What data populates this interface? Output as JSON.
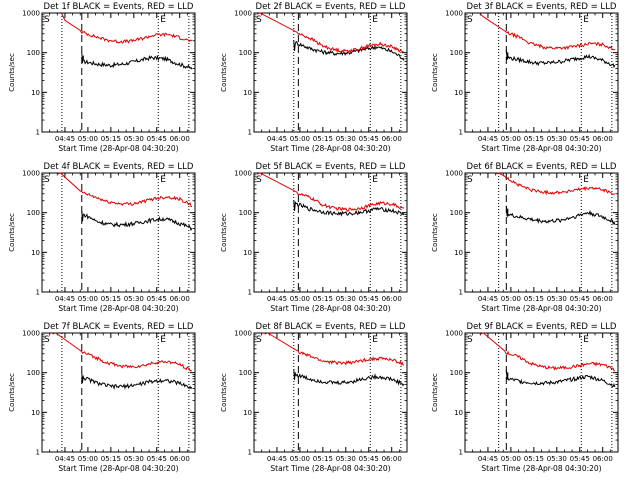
{
  "colors": {
    "events": "#000000",
    "lld": "#e00000",
    "background": "#ffffff"
  },
  "chart_data": [
    {
      "type": "line",
      "title": "Det 1f BLACK = Events, RED = LLD",
      "xlabel": "Start Time (28-Apr-08 04:30:20)",
      "ylabel": "Counts/sec",
      "yscale": "log",
      "ylim": [
        1,
        1000
      ],
      "y_ticks": [
        "1",
        "10",
        "100",
        "1000"
      ],
      "x_ticks": [
        "04:45",
        "05:00",
        "05:15",
        "05:30",
        "05:45",
        "06:00"
      ],
      "xlim": [
        "04:30",
        "06:10"
      ],
      "vlines_dotted": [
        "04:43",
        "05:46",
        "06:06"
      ],
      "vline_dashed": "04:56",
      "marker_s": "S",
      "marker_e": "E",
      "series": [
        {
          "name": "Events",
          "color": "#000000",
          "start_time": "04:56",
          "start_value": 100,
          "values_after_drop": [
            60,
            52,
            48,
            52,
            62,
            75,
            70,
            52,
            40
          ]
        },
        {
          "name": "LLD",
          "color": "#e00000",
          "initial_time": "04:43",
          "initial_value": 650,
          "start_value": 330,
          "values": [
            330,
            260,
            210,
            190,
            195,
            230,
            280,
            290,
            240,
            190
          ]
        }
      ]
    },
    {
      "type": "line",
      "title": "Det 2f BLACK = Events, RED = LLD",
      "xlabel": "Start Time (28-Apr-08 04:30:20)",
      "ylabel": "Counts/sec",
      "yscale": "log",
      "ylim": [
        1,
        1000
      ],
      "y_ticks": [
        "1",
        "10",
        "100",
        "1000"
      ],
      "x_ticks": [
        "04:45",
        "05:00",
        "05:15",
        "05:30",
        "05:45",
        "06:00"
      ],
      "xlim": [
        "04:30",
        "06:10"
      ],
      "vlines_dotted": [
        "04:56",
        "05:46",
        "06:06"
      ],
      "vline_dashed": "04:59",
      "marker_s": "S",
      "marker_e": "E",
      "series": [
        {
          "name": "Events",
          "color": "#000000",
          "start_time": "04:56",
          "start_value": 200,
          "values_after_drop": [
            180,
            130,
            105,
            95,
            100,
            120,
            140,
            110,
            70
          ]
        },
        {
          "name": "LLD",
          "color": "#e00000",
          "initial_time": "04:32",
          "initial_value": 1000,
          "start_value": 300,
          "values": [
            300,
            230,
            150,
            120,
            110,
            120,
            150,
            165,
            140,
            100
          ]
        }
      ]
    },
    {
      "type": "line",
      "title": "Det 3f BLACK = Events, RED = LLD",
      "xlabel": "Start Time (28-Apr-08 04:30:20)",
      "ylabel": "Counts/sec",
      "yscale": "log",
      "ylim": [
        1,
        1000
      ],
      "y_ticks": [
        "1",
        "10",
        "100",
        "1000"
      ],
      "x_ticks": [
        "04:45",
        "05:00",
        "05:15",
        "05:30",
        "05:45",
        "06:00"
      ],
      "xlim": [
        "04:30",
        "06:10"
      ],
      "vlines_dotted": [
        "04:52",
        "05:46",
        "06:06"
      ],
      "vline_dashed": "04:57",
      "marker_s": "S",
      "marker_e": "E",
      "series": [
        {
          "name": "Events",
          "color": "#000000",
          "start_time": "04:57",
          "start_value": 120,
          "values_after_drop": [
            75,
            65,
            55,
            55,
            60,
            70,
            80,
            65,
            45
          ]
        },
        {
          "name": "LLD",
          "color": "#e00000",
          "initial_time": "04:40",
          "initial_value": 800,
          "start_value": 320,
          "values": [
            320,
            250,
            170,
            140,
            130,
            135,
            150,
            170,
            160,
            120
          ]
        }
      ]
    },
    {
      "type": "line",
      "title": "Det 4f BLACK = Events, RED = LLD",
      "xlabel": "Start Time (28-Apr-08 04:30:20)",
      "ylabel": "Counts/sec",
      "yscale": "log",
      "ylim": [
        1,
        1000
      ],
      "y_ticks": [
        "1",
        "10",
        "100",
        "1000"
      ],
      "x_ticks": [
        "04:45",
        "05:00",
        "05:15",
        "05:30",
        "05:45",
        "06:00"
      ],
      "xlim": [
        "04:30",
        "06:10"
      ],
      "vlines_dotted": [
        "04:43",
        "05:46",
        "06:06"
      ],
      "vline_dashed": "04:56",
      "marker_s": "S",
      "marker_e": "E",
      "series": [
        {
          "name": "Events",
          "color": "#000000",
          "start_time": "04:56",
          "start_value": 110,
          "values_after_drop": [
            90,
            60,
            50,
            50,
            55,
            65,
            70,
            55,
            40
          ]
        },
        {
          "name": "LLD",
          "color": "#e00000",
          "initial_time": "04:40",
          "initial_value": 1000,
          "start_value": 320,
          "values": [
            320,
            250,
            190,
            170,
            165,
            190,
            230,
            250,
            220,
            150
          ]
        }
      ]
    },
    {
      "type": "line",
      "title": "Det 5f BLACK = Events, RED = LLD",
      "xlabel": "Start Time (28-Apr-08 04:30:20)",
      "ylabel": "Counts/sec",
      "yscale": "log",
      "ylim": [
        1,
        1000
      ],
      "y_ticks": [
        "1",
        "10",
        "100",
        "1000"
      ],
      "x_ticks": [
        "04:45",
        "05:00",
        "05:15",
        "05:30",
        "05:45",
        "06:00"
      ],
      "xlim": [
        "04:30",
        "06:10"
      ],
      "vlines_dotted": [
        "04:56",
        "05:46",
        "06:06"
      ],
      "vline_dashed": "04:59",
      "marker_s": "S",
      "marker_e": "E",
      "series": [
        {
          "name": "Events",
          "color": "#000000",
          "start_time": "04:56",
          "start_value": 200,
          "values_after_drop": [
            170,
            125,
            105,
            95,
            95,
            105,
            125,
            115,
            90
          ]
        },
        {
          "name": "LLD",
          "color": "#e00000",
          "initial_time": "04:32",
          "initial_value": 1000,
          "start_value": 300,
          "values": [
            300,
            240,
            160,
            130,
            120,
            125,
            150,
            175,
            165,
            120
          ]
        }
      ]
    },
    {
      "type": "line",
      "title": "Det 6f BLACK = Events, RED = LLD",
      "xlabel": "Start Time (28-Apr-08 04:30:20)",
      "ylabel": "Counts/sec",
      "yscale": "log",
      "ylim": [
        1,
        1000
      ],
      "y_ticks": [
        "1",
        "10",
        "100",
        "1000"
      ],
      "x_ticks": [
        "04:45",
        "05:00",
        "05:15",
        "05:30",
        "05:45",
        "06:00"
      ],
      "xlim": [
        "04:30",
        "06:10"
      ],
      "vlines_dotted": [
        "04:52",
        "05:46",
        "06:06"
      ],
      "vline_dashed": "04:57",
      "marker_s": "S",
      "marker_e": "E",
      "series": [
        {
          "name": "Events",
          "color": "#000000",
          "start_time": "04:57",
          "start_value": 150,
          "values_after_drop": [
            90,
            75,
            65,
            60,
            65,
            80,
            100,
            80,
            55
          ]
        },
        {
          "name": "LLD",
          "color": "#e00000",
          "initial_time": "04:50",
          "initial_value": 1000,
          "start_value": 750,
          "values": [
            750,
            500,
            380,
            330,
            320,
            340,
            380,
            420,
            380,
            280
          ]
        }
      ]
    },
    {
      "type": "line",
      "title": "Det 7f BLACK = Events, RED = LLD",
      "xlabel": "Start Time (28-Apr-08 04:30:20)",
      "ylabel": "Counts/sec",
      "yscale": "log",
      "ylim": [
        1,
        1000
      ],
      "y_ticks": [
        "1",
        "10",
        "100",
        "1000"
      ],
      "x_ticks": [
        "04:45",
        "05:00",
        "05:15",
        "05:30",
        "05:45",
        "06:00"
      ],
      "xlim": [
        "04:30",
        "06:10"
      ],
      "vlines_dotted": [
        "04:43",
        "05:46",
        "06:06"
      ],
      "vline_dashed": "04:56",
      "marker_s": "S",
      "marker_e": "E",
      "series": [
        {
          "name": "Events",
          "color": "#000000",
          "start_time": "04:56",
          "start_value": 100,
          "values_after_drop": [
            75,
            55,
            45,
            45,
            50,
            60,
            65,
            55,
            40
          ]
        },
        {
          "name": "LLD",
          "color": "#e00000",
          "initial_time": "04:37",
          "initial_value": 1000,
          "start_value": 330,
          "values": [
            330,
            250,
            180,
            150,
            140,
            150,
            180,
            190,
            160,
            110
          ]
        }
      ]
    },
    {
      "type": "line",
      "title": "Det 8f BLACK = Events, RED = LLD",
      "xlabel": "Start Time (28-Apr-08 04:30:20)",
      "ylabel": "Counts/sec",
      "yscale": "log",
      "ylim": [
        1,
        1000
      ],
      "y_ticks": [
        "1",
        "10",
        "100",
        "1000"
      ],
      "x_ticks": [
        "04:45",
        "05:00",
        "05:15",
        "05:30",
        "05:45",
        "06:00"
      ],
      "xlim": [
        "04:30",
        "06:10"
      ],
      "vlines_dotted": [
        "04:56",
        "05:46",
        "06:06"
      ],
      "vline_dashed": "04:59",
      "marker_s": "S",
      "marker_e": "E",
      "series": [
        {
          "name": "Events",
          "color": "#000000",
          "start_time": "04:56",
          "start_value": 120,
          "values_after_drop": [
            90,
            70,
            60,
            55,
            58,
            70,
            80,
            70,
            50
          ]
        },
        {
          "name": "LLD",
          "color": "#e00000",
          "initial_time": "04:37",
          "initial_value": 1000,
          "start_value": 330,
          "values": [
            330,
            260,
            200,
            180,
            175,
            190,
            220,
            230,
            210,
            160
          ]
        }
      ]
    },
    {
      "type": "line",
      "title": "Det 9f BLACK = Events, RED = LLD",
      "xlabel": "Start Time (28-Apr-08 04:30:20)",
      "ylabel": "Counts/sec",
      "yscale": "log",
      "ylim": [
        1,
        1000
      ],
      "y_ticks": [
        "1",
        "10",
        "100",
        "1000"
      ],
      "x_ticks": [
        "04:45",
        "05:00",
        "05:15",
        "05:30",
        "05:45",
        "06:00"
      ],
      "xlim": [
        "04:30",
        "06:10"
      ],
      "vlines_dotted": [
        "04:52",
        "05:46",
        "06:06"
      ],
      "vline_dashed": "04:57",
      "marker_s": "S",
      "marker_e": "E",
      "series": [
        {
          "name": "Events",
          "color": "#000000",
          "start_time": "04:57",
          "start_value": 120,
          "values_after_drop": [
            70,
            60,
            55,
            55,
            60,
            70,
            80,
            65,
            45
          ]
        },
        {
          "name": "LLD",
          "color": "#e00000",
          "initial_time": "04:40",
          "initial_value": 1000,
          "start_value": 320,
          "values": [
            320,
            250,
            170,
            140,
            130,
            135,
            150,
            170,
            160,
            120
          ]
        }
      ]
    }
  ]
}
